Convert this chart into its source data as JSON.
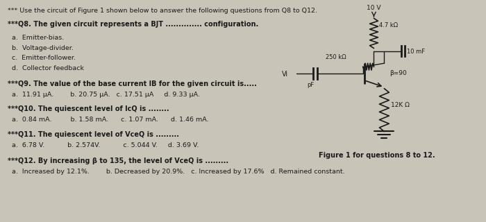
{
  "bg_color": "#c8c4b8",
  "paper_color": "#e8e4dc",
  "text_color": "#1a1a1a",
  "title_line": "*** Use the circuit of Figure 1 shown below to answer the following questions from Q8 to Q12.",
  "q8_line": "***Q8. The given circuit represents a BJT .............. configuration.",
  "q8_options": [
    "a.  Emitter-bias.",
    "b.  Voltage-divider.",
    "c.  Emitter-follower.",
    "d.  Collector feedback"
  ],
  "q9_line": "***Q9. The value of the base current IB for the given circuit is.....",
  "q9_options": "a.  11.91 μA.        b. 20.75 μA.   c. 17.51 μA     d. 9.33 μA.",
  "q10_line": "***Q10. The quiescent level of IcQ is ........",
  "q10_options": "a.  0.84 mA.         b. 1.58 mA.      c. 1.07 mA.      d. 1.46 mA.",
  "q11_line": "***Q11. The quiescent level of VceQ is .........",
  "q11_options": "a.  6.78 V.           b. 2.574V.           c. 5.044 V.     d. 3.69 V.",
  "q12_line": "***Q12. By increasing β to 135, the level of VceQ is .........",
  "q12_options": "a.  Increased by 12.1%.        b. Decreased by 20.9%.   c. Increased by 17.6%   d. Remained constant.",
  "figure_caption": "Figure 1 for questions 8 to 12.",
  "vcc_label": "10 V",
  "r1_label": "4.7 kΩ",
  "r2_label": "250 kΩ",
  "rc_label": "10 mF",
  "re_label": "12K Ω",
  "beta_label": "β=90",
  "cin_label": "pF",
  "vin_label": "Vi"
}
